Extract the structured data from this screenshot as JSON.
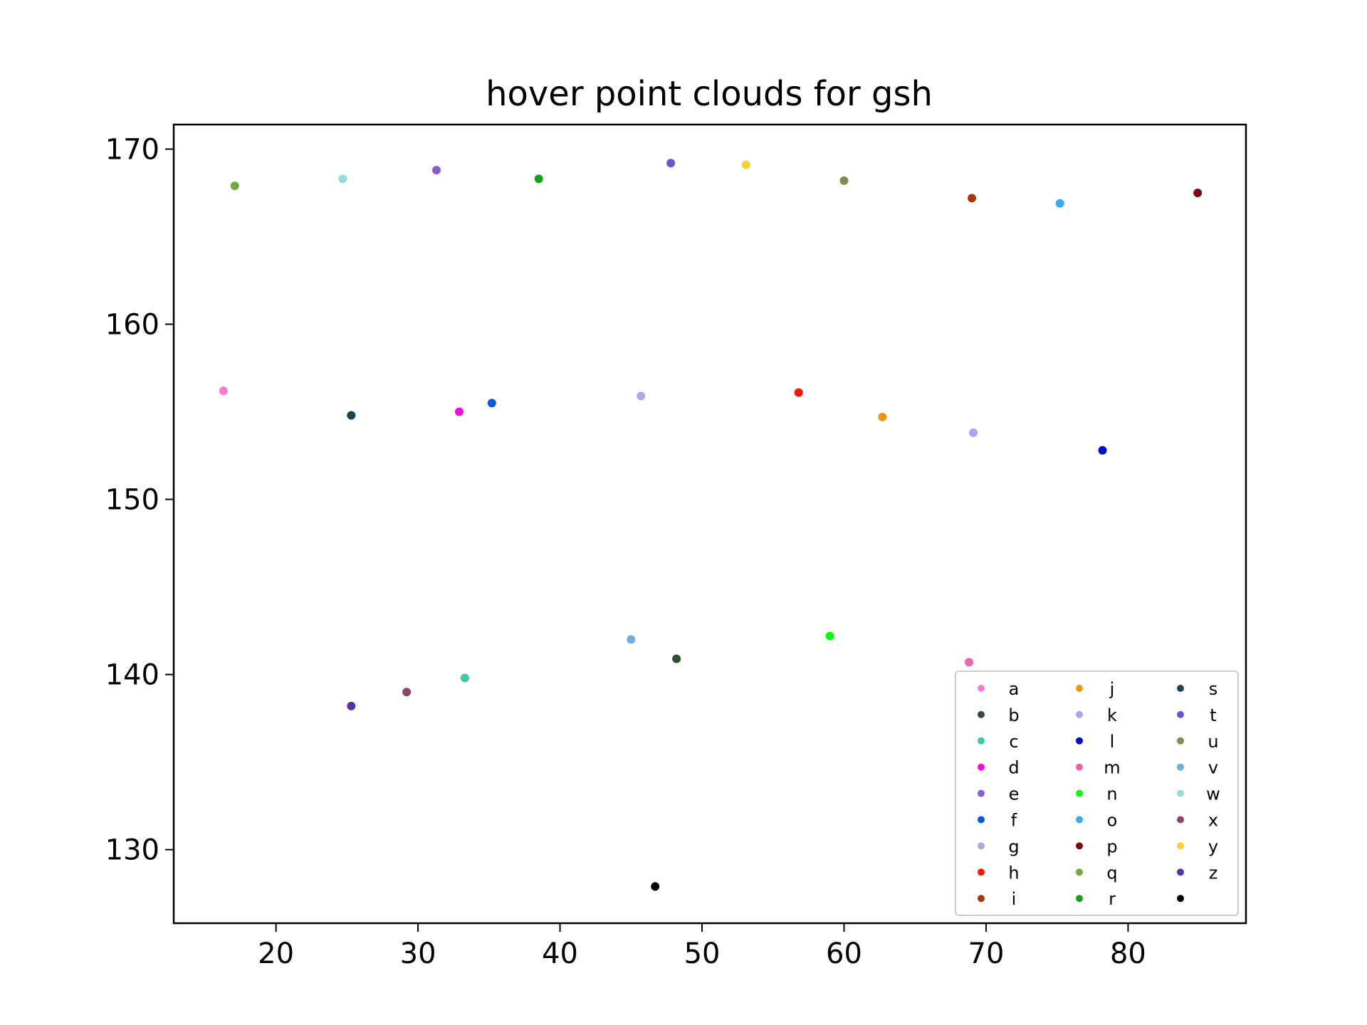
{
  "chart_data": {
    "type": "scatter",
    "title": "hover point clouds for gsh",
    "xlabel": "",
    "ylabel": "",
    "xlim": [
      12.8,
      88.3
    ],
    "ylim": [
      125.8,
      171.4
    ],
    "xticks": [
      20,
      30,
      40,
      50,
      60,
      70,
      80
    ],
    "yticks": [
      130,
      140,
      150,
      160,
      170
    ],
    "grid": false,
    "legend_position": "lower-right",
    "legend_columns": 3,
    "series": [
      {
        "name": "a",
        "color": "#f77bd6",
        "x": [
          16.3
        ],
        "y": [
          156.2
        ]
      },
      {
        "name": "b",
        "color": "#2f5030",
        "x": [
          48.2
        ],
        "y": [
          140.9
        ]
      },
      {
        "name": "c",
        "color": "#40c8a6",
        "x": [
          33.3
        ],
        "y": [
          139.8
        ]
      },
      {
        "name": "d",
        "color": "#f50ed8",
        "x": [
          32.9
        ],
        "y": [
          155.0
        ]
      },
      {
        "name": "e",
        "color": "#8a5cd0",
        "x": [
          31.3
        ],
        "y": [
          168.8
        ]
      },
      {
        "name": "f",
        "color": "#0b55e0",
        "x": [
          35.2
        ],
        "y": [
          155.5
        ]
      },
      {
        "name": "g",
        "color": "#a4addb",
        "x": [
          45.7
        ],
        "y": [
          155.9
        ]
      },
      {
        "name": "h",
        "color": "#f5190d",
        "x": [
          56.8
        ],
        "y": [
          156.1
        ]
      },
      {
        "name": "i",
        "color": "#a8370a",
        "x": [
          69.0
        ],
        "y": [
          167.2
        ]
      },
      {
        "name": "j",
        "color": "#ef9419",
        "x": [
          62.7
        ],
        "y": [
          154.7
        ]
      },
      {
        "name": "k",
        "color": "#a3a8f0",
        "x": [
          69.1
        ],
        "y": [
          153.8
        ]
      },
      {
        "name": "l",
        "color": "#0a0bd0",
        "x": [
          78.2
        ],
        "y": [
          152.8
        ]
      },
      {
        "name": "m",
        "color": "#ea66a9",
        "x": [
          68.8
        ],
        "y": [
          140.7
        ]
      },
      {
        "name": "n",
        "color": "#11f815",
        "x": [
          59.0
        ],
        "y": [
          142.2
        ]
      },
      {
        "name": "o",
        "color": "#32aaf6",
        "x": [
          75.2
        ],
        "y": [
          166.9
        ]
      },
      {
        "name": "p",
        "color": "#7f0a12",
        "x": [
          84.9
        ],
        "y": [
          167.5
        ]
      },
      {
        "name": "q",
        "color": "#74a840",
        "x": [
          17.1
        ],
        "y": [
          167.9
        ]
      },
      {
        "name": "r",
        "color": "#13a614",
        "x": [
          38.5
        ],
        "y": [
          168.3
        ]
      },
      {
        "name": "s",
        "color": "#1f4257",
        "x": [
          25.3
        ],
        "y": [
          154.8
        ]
      },
      {
        "name": "t",
        "color": "#6659cf",
        "x": [
          47.8
        ],
        "y": [
          169.2
        ]
      },
      {
        "name": "u",
        "color": "#7a8f52",
        "x": [
          60.0
        ],
        "y": [
          168.2
        ]
      },
      {
        "name": "v",
        "color": "#6cb0e2",
        "x": [
          45.0
        ],
        "y": [
          142.0
        ]
      },
      {
        "name": "w",
        "color": "#93dedc",
        "x": [
          24.7
        ],
        "y": [
          168.3
        ]
      },
      {
        "name": "x",
        "color": "#8c4568",
        "x": [
          29.2
        ],
        "y": [
          139.0
        ]
      },
      {
        "name": "y",
        "color": "#f5d037",
        "x": [
          53.1
        ],
        "y": [
          169.1
        ]
      },
      {
        "name": "z",
        "color": "#5534a8",
        "x": [
          25.3
        ],
        "y": [
          138.2
        ]
      },
      {
        "name": "",
        "color": "#000000",
        "x": [
          46.7
        ],
        "y": [
          127.9
        ]
      }
    ]
  }
}
